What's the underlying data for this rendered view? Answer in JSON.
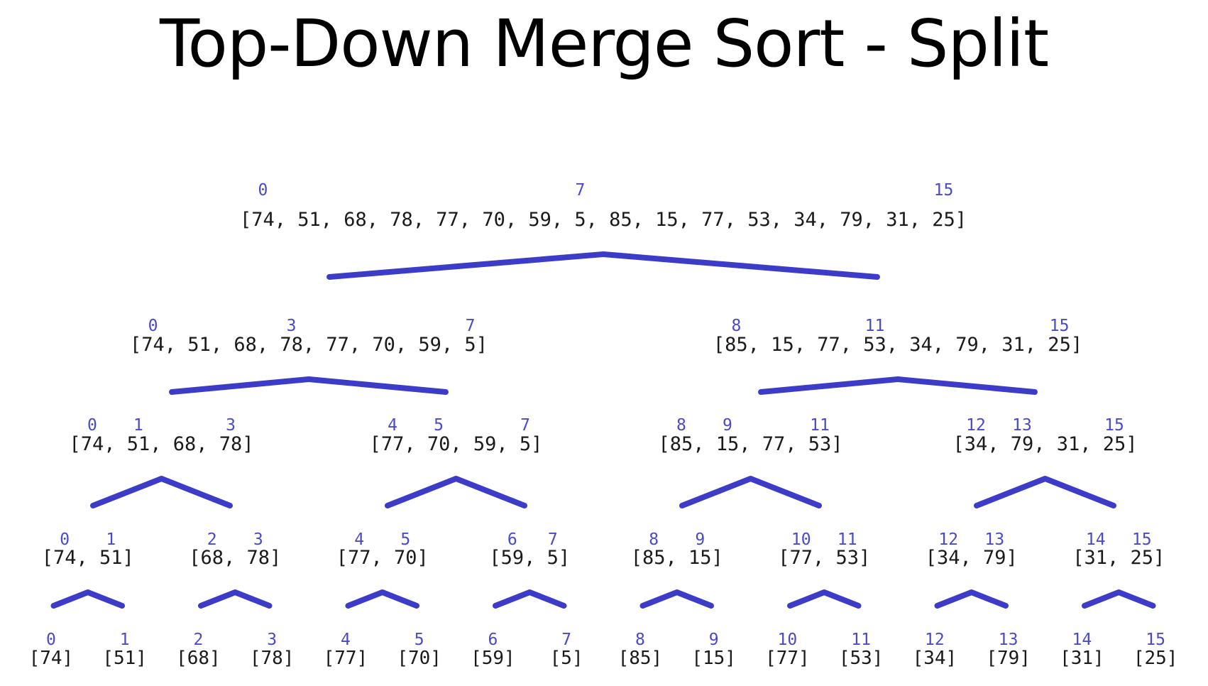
{
  "title": "Top-Down Merge Sort - Split",
  "colors": {
    "edge": "#3c3cc8",
    "index": "#4a4ac8",
    "text": "#1a1a1a"
  },
  "levels": [
    [
      {
        "text": "[74, 51, 68, 78, 77, 70, 59, 5, 85, 15, 77, 53, 34, 79, 31, 25]",
        "indices": [
          "0",
          "7",
          "15"
        ]
      }
    ],
    [
      {
        "text": "[74, 51, 68, 78, 77, 70, 59, 5]",
        "indices": [
          "0",
          "3",
          "7"
        ]
      },
      {
        "text": "[85, 15, 77, 53, 34, 79, 31, 25]",
        "indices": [
          "8",
          "11",
          "15"
        ]
      }
    ],
    [
      {
        "text": "[74, 51, 68, 78]",
        "indices": [
          "0",
          "1",
          "3"
        ]
      },
      {
        "text": "[77, 70, 59, 5]",
        "indices": [
          "4",
          "5",
          "7"
        ]
      },
      {
        "text": "[85, 15, 77, 53]",
        "indices": [
          "8",
          "9",
          "11"
        ]
      },
      {
        "text": "[34, 79, 31, 25]",
        "indices": [
          "12",
          "13",
          "15"
        ]
      }
    ],
    [
      {
        "text": "[74, 51]",
        "indices": [
          "0",
          "1"
        ]
      },
      {
        "text": "[68, 78]",
        "indices": [
          "2",
          "3"
        ]
      },
      {
        "text": "[77, 70]",
        "indices": [
          "4",
          "5"
        ]
      },
      {
        "text": "[59, 5]",
        "indices": [
          "6",
          "7"
        ]
      },
      {
        "text": "[85, 15]",
        "indices": [
          "8",
          "9"
        ]
      },
      {
        "text": "[77, 53]",
        "indices": [
          "10",
          "11"
        ]
      },
      {
        "text": "[34, 79]",
        "indices": [
          "12",
          "13"
        ]
      },
      {
        "text": "[31, 25]",
        "indices": [
          "14",
          "15"
        ]
      }
    ],
    [
      {
        "text": "[74]",
        "indices": [
          "0"
        ]
      },
      {
        "text": "[51]",
        "indices": [
          "1"
        ]
      },
      {
        "text": "[68]",
        "indices": [
          "2"
        ]
      },
      {
        "text": "[78]",
        "indices": [
          "3"
        ]
      },
      {
        "text": "[77]",
        "indices": [
          "4"
        ]
      },
      {
        "text": "[70]",
        "indices": [
          "5"
        ]
      },
      {
        "text": "[59]",
        "indices": [
          "6"
        ]
      },
      {
        "text": "[5]",
        "indices": [
          "7"
        ]
      },
      {
        "text": "[85]",
        "indices": [
          "8"
        ]
      },
      {
        "text": "[15]",
        "indices": [
          "9"
        ]
      },
      {
        "text": "[77]",
        "indices": [
          "10"
        ]
      },
      {
        "text": "[53]",
        "indices": [
          "11"
        ]
      },
      {
        "text": "[34]",
        "indices": [
          "12"
        ]
      },
      {
        "text": "[79]",
        "indices": [
          "13"
        ]
      },
      {
        "text": "[31]",
        "indices": [
          "14"
        ]
      },
      {
        "text": "[25]",
        "indices": [
          "15"
        ]
      }
    ]
  ]
}
